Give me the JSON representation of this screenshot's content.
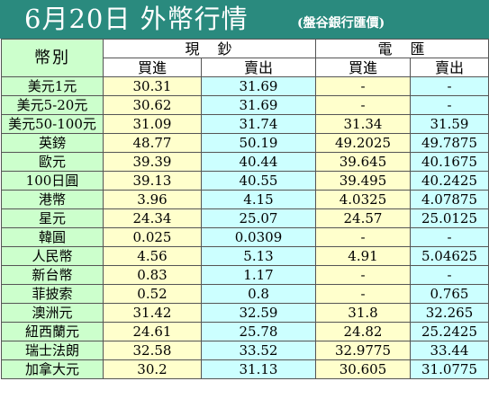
{
  "header": {
    "title": "6月20日 外幣行情",
    "source": "(盤谷銀行匯價)"
  },
  "table": {
    "currency_header": "幣別",
    "group_cash": "現　鈔",
    "group_wire": "電　匯",
    "buy_label": "買進",
    "sell_label": "賣出",
    "rows": [
      {
        "name": "美元1元",
        "cash_buy": "30.31",
        "cash_sell": "31.69",
        "wire_buy": "-",
        "wire_sell": "-"
      },
      {
        "name": "美元5-20元",
        "cash_buy": "30.62",
        "cash_sell": "31.69",
        "wire_buy": "-",
        "wire_sell": "-"
      },
      {
        "name": "美元50-100元",
        "cash_buy": "31.09",
        "cash_sell": "31.74",
        "wire_buy": "31.34",
        "wire_sell": "31.59"
      },
      {
        "name": "英鎊",
        "cash_buy": "48.77",
        "cash_sell": "50.19",
        "wire_buy": "49.2025",
        "wire_sell": "49.7875"
      },
      {
        "name": "歐元",
        "cash_buy": "39.39",
        "cash_sell": "40.44",
        "wire_buy": "39.645",
        "wire_sell": "40.1675"
      },
      {
        "name": "100日圓",
        "cash_buy": "39.13",
        "cash_sell": "40.55",
        "wire_buy": "39.495",
        "wire_sell": "40.2425"
      },
      {
        "name": "港幣",
        "cash_buy": "3.96",
        "cash_sell": "4.15",
        "wire_buy": "4.0325",
        "wire_sell": "4.07875"
      },
      {
        "name": "星元",
        "cash_buy": "24.34",
        "cash_sell": "25.07",
        "wire_buy": "24.57",
        "wire_sell": "25.0125"
      },
      {
        "name": "韓圓",
        "cash_buy": "0.025",
        "cash_sell": "0.0309",
        "wire_buy": "-",
        "wire_sell": "-"
      },
      {
        "name": "人民幣",
        "cash_buy": "4.56",
        "cash_sell": "5.13",
        "wire_buy": "4.91",
        "wire_sell": "5.04625"
      },
      {
        "name": "新台幣",
        "cash_buy": "0.83",
        "cash_sell": "1.17",
        "wire_buy": "-",
        "wire_sell": "-"
      },
      {
        "name": "菲披索",
        "cash_buy": "0.52",
        "cash_sell": "0.8",
        "wire_buy": "-",
        "wire_sell": "0.765"
      },
      {
        "name": "澳洲元",
        "cash_buy": "31.42",
        "cash_sell": "32.59",
        "wire_buy": "31.8",
        "wire_sell": "32.265"
      },
      {
        "name": "紐西蘭元",
        "cash_buy": "24.61",
        "cash_sell": "25.78",
        "wire_buy": "24.82",
        "wire_sell": "25.2425"
      },
      {
        "name": "瑞士法朗",
        "cash_buy": "32.58",
        "cash_sell": "33.52",
        "wire_buy": "32.9775",
        "wire_sell": "33.44"
      },
      {
        "name": "加拿大元",
        "cash_buy": "30.2",
        "cash_sell": "31.13",
        "wire_buy": "30.605",
        "wire_sell": "31.0775"
      }
    ]
  }
}
